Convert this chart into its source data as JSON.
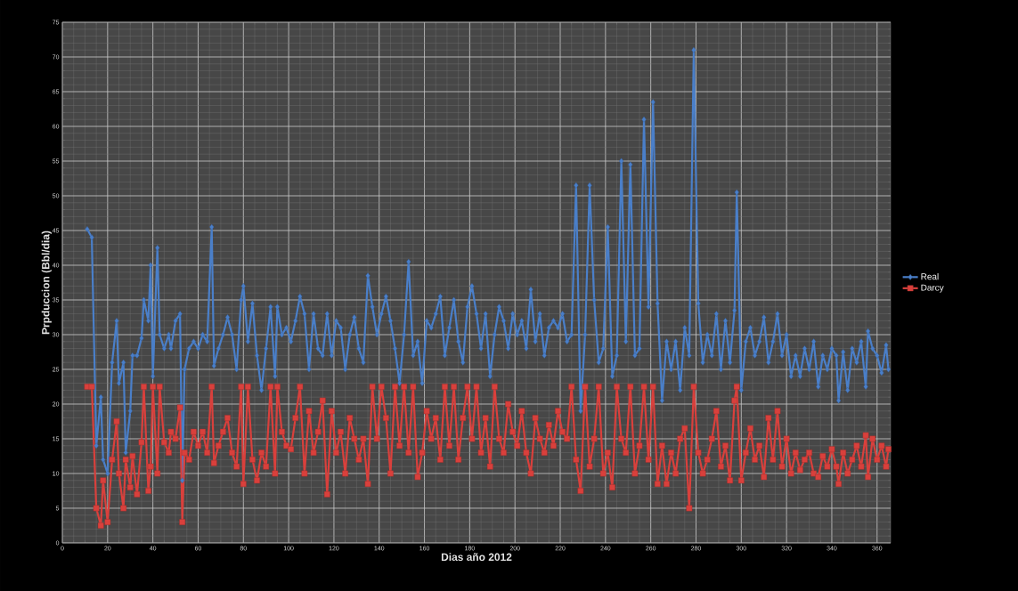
{
  "chart_data": {
    "type": "line",
    "xlabel": "Dias año 2012",
    "ylabel": "Prpduccion (Bbl/dia)",
    "xlim": [
      0,
      366
    ],
    "xticks": [
      0,
      20,
      40,
      60,
      80,
      100,
      120,
      140,
      160,
      180,
      200,
      220,
      240,
      260,
      280,
      300,
      320,
      340,
      360
    ],
    "ylim": [
      0,
      75
    ],
    "yticks": [
      0,
      5,
      10,
      15,
      20,
      25,
      30,
      35,
      40,
      45,
      50,
      55,
      60,
      65,
      70,
      75
    ],
    "grid": true,
    "legend": "right",
    "line_style": "solid",
    "x": [
      11,
      13,
      15,
      17,
      18,
      20,
      22,
      24,
      25,
      27,
      28,
      30,
      31,
      33,
      35,
      36,
      38,
      39,
      40,
      42,
      43,
      45,
      47,
      48,
      50,
      52,
      53,
      54,
      56,
      58,
      60,
      62,
      64,
      66,
      67,
      69,
      71,
      73,
      75,
      77,
      79,
      80,
      82,
      84,
      86,
      88,
      90,
      92,
      94,
      95,
      97,
      99,
      101,
      103,
      105,
      107,
      109,
      111,
      113,
      115,
      117,
      119,
      121,
      123,
      125,
      127,
      129,
      131,
      133,
      135,
      137,
      139,
      141,
      143,
      145,
      147,
      149,
      151,
      153,
      155,
      157,
      159,
      161,
      163,
      165,
      167,
      169,
      171,
      173,
      175,
      177,
      179,
      181,
      183,
      185,
      187,
      189,
      191,
      193,
      195,
      197,
      199,
      201,
      203,
      205,
      207,
      209,
      211,
      213,
      215,
      217,
      219,
      221,
      223,
      225,
      227,
      229,
      231,
      233,
      235,
      237,
      239,
      241,
      243,
      245,
      247,
      249,
      251,
      253,
      255,
      257,
      259,
      261,
      263,
      265,
      267,
      269,
      271,
      273,
      275,
      277,
      279,
      281,
      283,
      285,
      287,
      289,
      291,
      293,
      295,
      297,
      298,
      300,
      302,
      304,
      306,
      308,
      310,
      312,
      314,
      316,
      318,
      320,
      322,
      324,
      326,
      328,
      330,
      332,
      334,
      336,
      338,
      340,
      342,
      343,
      345,
      347,
      349,
      351,
      353,
      355,
      356,
      358,
      360,
      362,
      364,
      365
    ],
    "series": [
      {
        "name": "Real",
        "color": "#4a7fc9",
        "marker": "diamond",
        "values": [
          45.2,
          44,
          14,
          21,
          12,
          10,
          26,
          32,
          23,
          26,
          13,
          19,
          27,
          27,
          29.5,
          35,
          32,
          40,
          24,
          42.5,
          30,
          28,
          30,
          28,
          32,
          33,
          9,
          25,
          28,
          29,
          28,
          30,
          29,
          45.5,
          25.5,
          28,
          30,
          32.5,
          30,
          25,
          35,
          37,
          29,
          34.5,
          27,
          22,
          28,
          34,
          24,
          34,
          30,
          31,
          29,
          32,
          35.5,
          33,
          25,
          33,
          28,
          27,
          33,
          27,
          32,
          31,
          25,
          30,
          32.5,
          28,
          26,
          38.5,
          34,
          30,
          33,
          35.5,
          32,
          28,
          23,
          30,
          40.5,
          27,
          29,
          23,
          32,
          31,
          33,
          35.5,
          27,
          31,
          35,
          29,
          26,
          34,
          37,
          33,
          28,
          33,
          24,
          30,
          34,
          32,
          28,
          33,
          30,
          32,
          28,
          36.5,
          29,
          33,
          27,
          31,
          32,
          31,
          33,
          29,
          30,
          51.5,
          19,
          30,
          51.5,
          35,
          26,
          28,
          45.5,
          24,
          27,
          55,
          29,
          54.5,
          27,
          28,
          61,
          34,
          63.5,
          34.5,
          20.5,
          29,
          25,
          29,
          22,
          31,
          27,
          71,
          34.5,
          26,
          30,
          27,
          33,
          25,
          32,
          26,
          33.5,
          50.5,
          22,
          29,
          31,
          27,
          29,
          32.5,
          26,
          29,
          33,
          27,
          30,
          24,
          27,
          24,
          28,
          25,
          29,
          22.5,
          27,
          25,
          28,
          27,
          20.5,
          27.5,
          22,
          28,
          26,
          29,
          22.5,
          30.5,
          28,
          27,
          24.5,
          28.5,
          25
        ]
      },
      {
        "name": "Darcy",
        "color": "#d9403c",
        "marker": "square",
        "values": [
          22.5,
          22.5,
          5,
          2.5,
          9,
          3,
          12,
          17.5,
          10,
          5,
          12,
          8,
          12.5,
          7,
          14.5,
          22.5,
          7.5,
          11,
          22.5,
          10,
          22.5,
          14.5,
          13,
          16,
          15,
          19.5,
          3,
          13,
          12,
          16,
          14,
          16,
          13,
          22.5,
          11.5,
          14,
          16,
          18,
          13,
          11,
          22.5,
          8.5,
          22.5,
          12,
          9,
          13,
          11,
          22.5,
          10,
          22.5,
          16,
          14,
          13.5,
          18,
          22.5,
          10,
          19,
          13,
          16,
          20.5,
          7,
          19,
          13,
          16,
          10,
          18,
          15,
          12,
          15,
          8.5,
          22.5,
          15,
          22.5,
          18,
          10,
          22.5,
          14,
          22.5,
          13,
          22.5,
          9.5,
          13,
          19,
          15,
          18,
          12,
          22.5,
          14,
          22.5,
          12,
          18,
          22.5,
          15,
          22.5,
          13,
          18,
          11,
          22.5,
          15,
          13,
          20,
          16,
          14,
          19,
          13,
          10,
          18,
          15,
          13,
          17,
          14,
          19,
          16,
          15,
          22.5,
          12,
          7.5,
          22.5,
          11,
          15,
          22.5,
          10,
          13,
          8,
          22.5,
          15,
          13,
          22.5,
          10,
          14,
          22.5,
          12,
          22.5,
          8.5,
          14,
          8.5,
          13,
          10,
          15,
          16.5,
          5,
          22.5,
          13,
          10,
          12,
          15,
          19,
          11,
          14,
          9,
          20.5,
          22.5,
          9,
          13,
          16.5,
          12,
          14,
          9.5,
          18,
          12,
          19,
          11,
          15,
          10,
          13,
          10.5,
          12,
          13,
          10,
          9.5,
          12.5,
          11,
          13.5,
          11,
          8.5,
          13,
          10,
          12,
          14,
          11,
          15.5,
          9.5,
          15,
          12,
          14,
          11,
          13.5
        ]
      }
    ]
  }
}
